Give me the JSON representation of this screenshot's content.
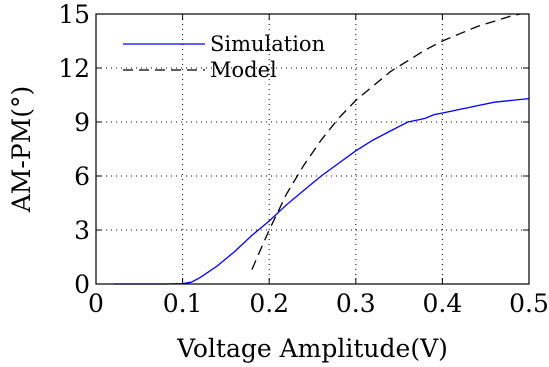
{
  "chart_data": {
    "type": "line",
    "xlabel": "Voltage Amplitude(V)",
    "ylabel": "AM-PM(°)",
    "xlim": [
      0,
      0.5
    ],
    "ylim": [
      0,
      15
    ],
    "x_ticks": [
      0,
      0.1,
      0.2,
      0.3,
      0.4,
      0.5
    ],
    "y_ticks": [
      0,
      3,
      6,
      9,
      12,
      15
    ],
    "x_tick_labels": [
      "0",
      "0.1",
      "0.2",
      "0.3",
      "0.4",
      "0.5"
    ],
    "y_tick_labels": [
      "0",
      "3",
      "6",
      "9",
      "12",
      "15"
    ],
    "grid": true,
    "legend_position": "top-left",
    "series": [
      {
        "name": "Simulation",
        "color": "#0000ff",
        "style": "solid",
        "x": [
          0.02,
          0.05,
          0.08,
          0.1,
          0.11,
          0.12,
          0.14,
          0.16,
          0.18,
          0.2,
          0.22,
          0.24,
          0.26,
          0.28,
          0.3,
          0.32,
          0.34,
          0.36,
          0.37,
          0.38,
          0.39,
          0.4,
          0.41,
          0.42,
          0.43,
          0.44,
          0.45,
          0.46,
          0.48,
          0.5
        ],
        "y": [
          0.0,
          0.0,
          0.0,
          0.02,
          0.1,
          0.35,
          1.0,
          1.8,
          2.7,
          3.5,
          4.4,
          5.2,
          6.0,
          6.7,
          7.4,
          8.0,
          8.5,
          9.0,
          9.1,
          9.2,
          9.4,
          9.5,
          9.6,
          9.7,
          9.8,
          9.9,
          10.0,
          10.1,
          10.2,
          10.3
        ]
      },
      {
        "name": "Model",
        "color": "#000000",
        "style": "dashed",
        "x": [
          0.18,
          0.19,
          0.2,
          0.21,
          0.22,
          0.24,
          0.26,
          0.28,
          0.3,
          0.32,
          0.34,
          0.36,
          0.38,
          0.4,
          0.42,
          0.44,
          0.46,
          0.48,
          0.49
        ],
        "y": [
          0.8,
          1.9,
          3.0,
          4.0,
          5.0,
          6.6,
          8.0,
          9.2,
          10.2,
          11.0,
          11.8,
          12.4,
          13.0,
          13.5,
          13.9,
          14.3,
          14.6,
          14.9,
          15.0
        ]
      }
    ]
  }
}
